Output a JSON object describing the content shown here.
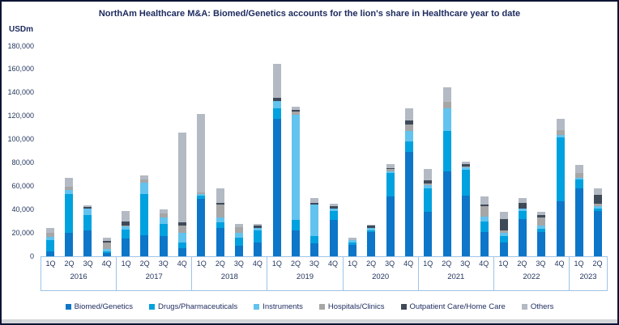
{
  "chart_data": {
    "type": "bar",
    "stacked": true,
    "title": "NorthAm Healthcare M&A: Biomed/Genetics accounts for the lion's share in Healthcare year to date",
    "ylabel": "USDm",
    "ylim": [
      0,
      180000
    ],
    "grid": false,
    "legend_position": "bottom",
    "ytick_labels_top_to_bottom": [
      "180,000",
      "160,000",
      "140,000",
      "120,000",
      "100,000",
      "80,000",
      "60,000",
      "40,000",
      "20,000",
      "0"
    ],
    "x_groups": [
      {
        "year": "2016",
        "quarters": [
          "1Q",
          "2Q",
          "3Q",
          "4Q"
        ]
      },
      {
        "year": "2017",
        "quarters": [
          "1Q",
          "2Q",
          "3Q",
          "4Q"
        ]
      },
      {
        "year": "2018",
        "quarters": [
          "1Q",
          "2Q",
          "3Q",
          "4Q"
        ]
      },
      {
        "year": "2019",
        "quarters": [
          "1Q",
          "2Q",
          "3Q",
          "4Q"
        ]
      },
      {
        "year": "2020",
        "quarters": [
          "1Q",
          "2Q",
          "3Q",
          "4Q"
        ]
      },
      {
        "year": "2021",
        "quarters": [
          "1Q",
          "2Q",
          "3Q",
          "4Q"
        ]
      },
      {
        "year": "2022",
        "quarters": [
          "1Q",
          "2Q",
          "3Q",
          "4Q"
        ]
      },
      {
        "year": "2023",
        "quarters": [
          "1Q",
          "2Q"
        ]
      }
    ],
    "series": [
      {
        "name": "Biomed/Genetics",
        "color": "#0d76c8",
        "values": [
          4000,
          20000,
          22000,
          2500,
          15000,
          18000,
          17000,
          7000,
          49000,
          24000,
          9000,
          12000,
          118000,
          22000,
          11000,
          31000,
          9500,
          21000,
          51000,
          89000,
          38000,
          73000,
          52000,
          21000,
          12000,
          32000,
          21000,
          47000,
          58000,
          39000
        ]
      },
      {
        "name": "Drugs/Pharmaceuticals",
        "color": "#00a1df",
        "values": [
          10000,
          33000,
          13000,
          2000,
          8000,
          35000,
          11000,
          5000,
          3000,
          5000,
          7000,
          10000,
          9000,
          9000,
          6000,
          8000,
          2500,
          1500,
          20000,
          9000,
          20000,
          34000,
          22000,
          9000,
          5000,
          7000,
          2500,
          55000,
          8000,
          2000
        ]
      },
      {
        "name": "Instruments",
        "color": "#62c3ee",
        "values": [
          2500,
          3500,
          6000,
          1500,
          2500,
          10000,
          5000,
          8000,
          1000,
          4000,
          4000,
          2000,
          6000,
          90000,
          27000,
          2000,
          2000,
          2000,
          2000,
          9000,
          3000,
          20000,
          2000,
          4000,
          3000,
          2000,
          2500,
          2000,
          1000,
          2000
        ]
      },
      {
        "name": "Hospitals/Clinics",
        "color": "#a6a6a6",
        "values": [
          3500,
          3000,
          0,
          6000,
          1000,
          3000,
          4000,
          6000,
          2000,
          11000,
          5000,
          0,
          0,
          3000,
          0,
          0,
          0,
          0,
          1500,
          6000,
          1000,
          5000,
          1000,
          9000,
          2000,
          0,
          7000,
          4000,
          4000,
          2000
        ]
      },
      {
        "name": "Outpatient Care/Home Care",
        "color": "#3f4a59",
        "values": [
          0,
          0,
          1500,
          1000,
          3000,
          0,
          0,
          3000,
          0,
          2000,
          0,
          2000,
          3000,
          1000,
          2000,
          2000,
          0,
          1500,
          1000,
          3500,
          3000,
          0,
          2000,
          1000,
          10000,
          5000,
          2500,
          0,
          0,
          8000
        ]
      },
      {
        "name": "Others",
        "color": "#b3bac4",
        "values": [
          4000,
          7500,
          1000,
          3000,
          9500,
          3000,
          3000,
          77000,
          67000,
          12000,
          3000,
          2000,
          29000,
          3000,
          4000,
          2000,
          2000,
          1000,
          3500,
          10500,
          10000,
          13000,
          2000,
          7000,
          6000,
          4000,
          2500,
          10000,
          7000,
          5000
        ]
      }
    ]
  }
}
